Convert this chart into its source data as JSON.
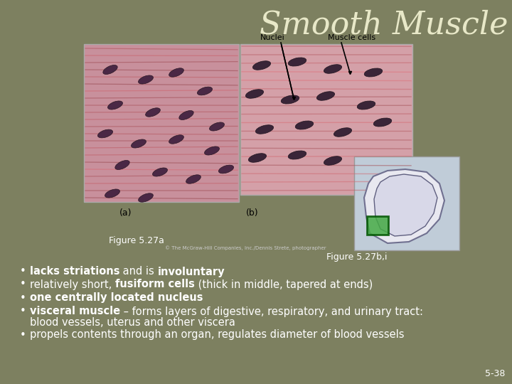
{
  "background_color": "#7d8060",
  "title": "Smooth Muscle",
  "title_color": "#e8e8c8",
  "title_fontsize": 32,
  "title_style": "italic",
  "label_nuclei": "Nuclei",
  "label_muscle_cells": "Muscle cells",
  "label_a": "(a)",
  "label_b": "(b)",
  "fig_caption_a": "Figure 5.27a",
  "fig_caption_b": "Figure 5.27b,i",
  "slide_number": "5-38",
  "copyright_text": "© The McGraw-Hill Companies, Inc./Dennis Strete, photographer",
  "text_color": "#ffffff",
  "background_color_slide": "#7d8060"
}
